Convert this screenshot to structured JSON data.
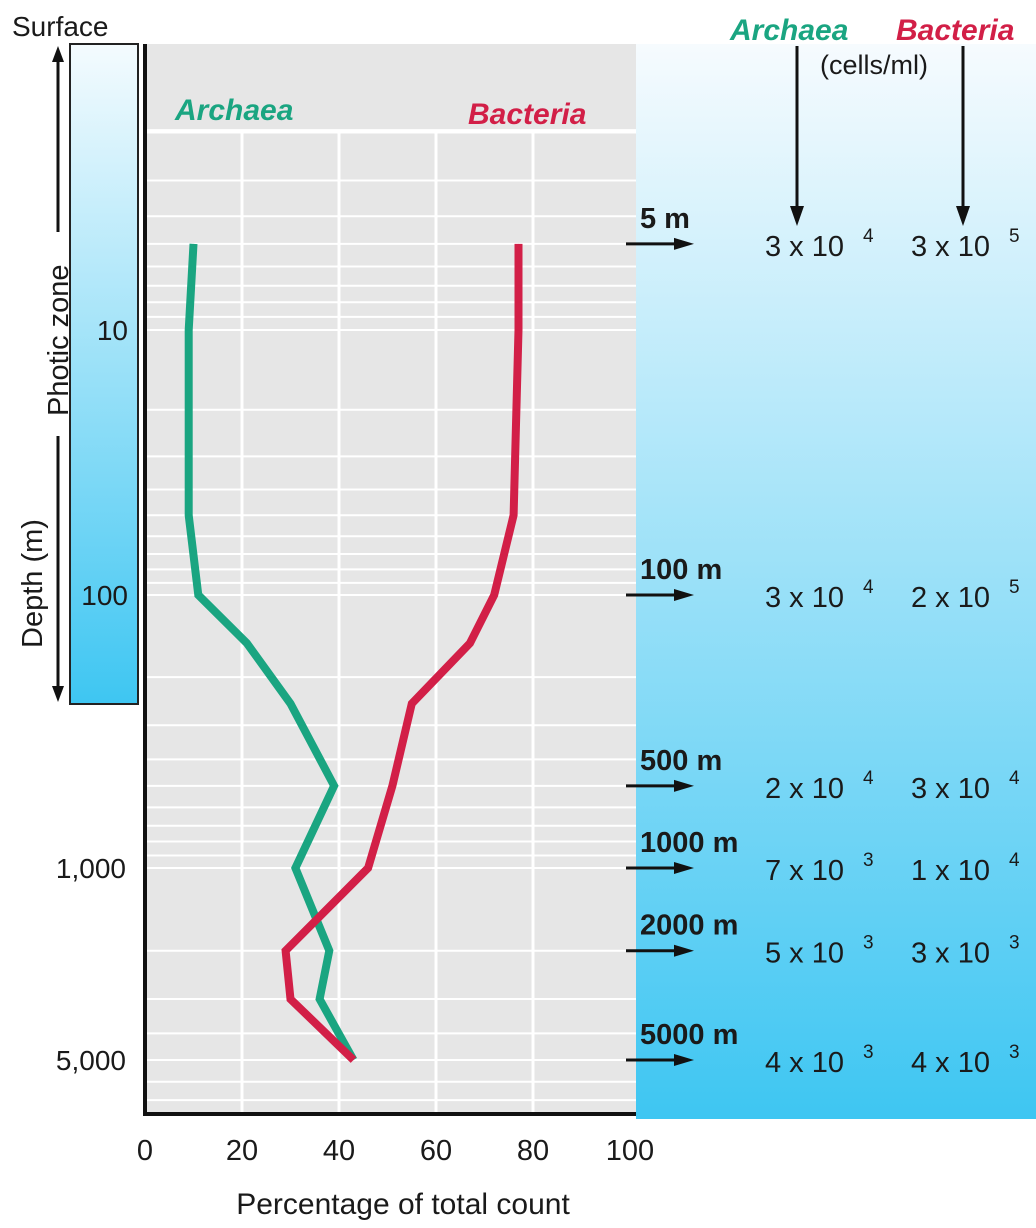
{
  "colors": {
    "archaea": "#1aa581",
    "bacteria": "#d21f47",
    "plot_bg": "#e6e6e6",
    "water_top": "#f6fbfe",
    "water_bottom": "#3ec6f2",
    "axis": "#111111"
  },
  "chart_data": {
    "type": "line",
    "xlabel": "Percentage of total count",
    "ylabel": "Depth (m)",
    "xlim": [
      0,
      100
    ],
    "x_ticks": [
      "0",
      "20",
      "40",
      "60",
      "80",
      "100"
    ],
    "y_ticks": [
      "10",
      "100",
      "1,000",
      "5,000"
    ],
    "y_scale": "log",
    "y_top_label": "Surface",
    "zone_label": "Photic zone",
    "grid": true,
    "series": [
      {
        "name": "Archaea",
        "color": "#1aa581",
        "points": [
          {
            "depth": 5,
            "pct": 10
          },
          {
            "depth": 10,
            "pct": 9
          },
          {
            "depth": 50,
            "pct": 9
          },
          {
            "depth": 100,
            "pct": 11
          },
          {
            "depth": 150,
            "pct": 21
          },
          {
            "depth": 250,
            "pct": 30
          },
          {
            "depth": 500,
            "pct": 39
          },
          {
            "depth": 1000,
            "pct": 31
          },
          {
            "depth": 2000,
            "pct": 38
          },
          {
            "depth": 3000,
            "pct": 36
          },
          {
            "depth": 5000,
            "pct": 43
          }
        ]
      },
      {
        "name": "Bacteria",
        "color": "#d21f47",
        "points": [
          {
            "depth": 5,
            "pct": 77
          },
          {
            "depth": 10,
            "pct": 77
          },
          {
            "depth": 50,
            "pct": 76
          },
          {
            "depth": 100,
            "pct": 72
          },
          {
            "depth": 150,
            "pct": 67
          },
          {
            "depth": 250,
            "pct": 55
          },
          {
            "depth": 500,
            "pct": 51
          },
          {
            "depth": 1000,
            "pct": 46
          },
          {
            "depth": 2000,
            "pct": 29
          },
          {
            "depth": 3000,
            "pct": 30
          },
          {
            "depth": 5000,
            "pct": 43
          }
        ]
      }
    ],
    "cell_counts": {
      "header_archaea": "Archaea",
      "header_bacteria": "Bacteria",
      "unit": "(cells/ml)",
      "rows": [
        {
          "depth": 5,
          "label": "5 m",
          "archaea": "3 x 10",
          "archaea_exp": "4",
          "bacteria": "3 x 10",
          "bacteria_exp": "5"
        },
        {
          "depth": 100,
          "label": "100 m",
          "archaea": "3 x 10",
          "archaea_exp": "4",
          "bacteria": "2 x 10",
          "bacteria_exp": "5"
        },
        {
          "depth": 500,
          "label": "500 m",
          "archaea": "2 x 10",
          "archaea_exp": "4",
          "bacteria": "3 x 10",
          "bacteria_exp": "4"
        },
        {
          "depth": 1000,
          "label": "1000 m",
          "archaea": "7 x 10",
          "archaea_exp": "3",
          "bacteria": "1 x 10",
          "bacteria_exp": "4"
        },
        {
          "depth": 2000,
          "label": "2000 m",
          "archaea": "5 x 10",
          "archaea_exp": "3",
          "bacteria": "3 x 10",
          "bacteria_exp": "3"
        },
        {
          "depth": 5000,
          "label": "5000 m",
          "archaea": "4 x 10",
          "archaea_exp": "3",
          "bacteria": "4 x 10",
          "bacteria_exp": "3"
        }
      ]
    }
  }
}
